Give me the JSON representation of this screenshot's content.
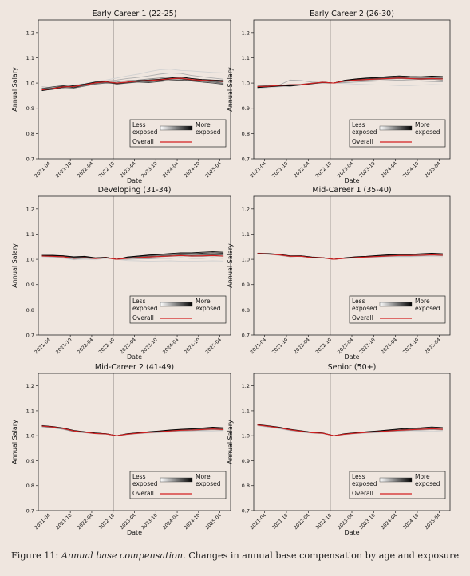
{
  "caption": {
    "label": "Figure 11:",
    "title": "Annual base compensation.",
    "text": "Changes in annual base compensation by age and exposure"
  },
  "colors": {
    "overall": "#d42020",
    "less_exposed": "#d0d0d0",
    "more_exposed": "#000000",
    "panel_background": "#efe6df"
  },
  "shared": {
    "xlabel": "Date",
    "ylabel": "Annual Salary",
    "yticks": [
      0.7,
      0.8,
      0.9,
      1.0,
      1.1,
      1.2
    ],
    "ylim": [
      0.7,
      1.25
    ],
    "xticks": [
      "2021-04",
      "2021-10",
      "2022-04",
      "2022-10",
      "2023-04",
      "2023-10",
      "2024-04",
      "2024-10",
      "2025-04"
    ],
    "xlim": [
      "2021-01",
      "2025-07"
    ],
    "reference_line": "2022-10",
    "legend": {
      "less": [
        "Less",
        "exposed"
      ],
      "more": [
        "More",
        "exposed"
      ],
      "overall": "Overall",
      "placement": "lower-right"
    }
  },
  "chart_data": [
    {
      "type": "line",
      "title": "Early Career 1 (22-25)",
      "x": [
        "2021-02",
        "2021-05",
        "2021-08",
        "2021-11",
        "2022-02",
        "2022-05",
        "2022-08",
        "2022-11",
        "2023-02",
        "2023-05",
        "2023-08",
        "2023-11",
        "2024-02",
        "2024-05",
        "2024-08",
        "2024-11",
        "2025-02",
        "2025-05"
      ],
      "series": [
        {
          "values": [
            0.975,
            0.98,
            0.985,
            0.992,
            0.998,
            1.006,
            1.012,
            1.02,
            1.028,
            1.035,
            1.045,
            1.052,
            1.055,
            1.05,
            1.048,
            1.045,
            1.042,
            1.04
          ]
        },
        {
          "values": [
            0.985,
            0.982,
            0.98,
            0.99,
            0.993,
            1.0,
            1.008,
            1.012,
            1.018,
            1.022,
            1.028,
            1.035,
            1.04,
            1.038,
            1.03,
            1.025,
            1.02,
            1.015
          ]
        },
        {
          "values": [
            0.98,
            0.978,
            0.983,
            0.986,
            0.99,
            0.997,
            1.002,
            1.004,
            1.01,
            1.012,
            1.016,
            1.02,
            1.024,
            1.022,
            1.018,
            1.012,
            1.006,
            1.0
          ]
        },
        {
          "values": [
            0.972,
            0.975,
            0.982,
            0.98,
            0.988,
            0.996,
            1.0,
            0.998,
            1.002,
            1.006,
            1.01,
            1.012,
            1.018,
            1.016,
            1.01,
            1.008,
            1.004,
            0.998
          ]
        },
        {
          "values": [
            0.978,
            0.985,
            0.99,
            0.985,
            0.995,
            1.002,
            1.005,
            0.996,
            1.0,
            1.004,
            1.002,
            1.006,
            1.01,
            1.012,
            1.008,
            1.004,
            1.0,
            0.995
          ]
        },
        {
          "values": [
            0.975,
            0.98,
            0.988,
            0.982,
            0.992,
            1.0,
            1.004,
            0.998,
            1.003,
            1.008,
            1.006,
            1.01,
            1.015,
            1.018,
            1.012,
            1.01,
            1.008,
            1.005
          ]
        },
        {
          "values": [
            0.97,
            0.976,
            0.984,
            0.99,
            0.996,
            1.004,
            1.006,
            1.0,
            1.004,
            1.01,
            1.012,
            1.015,
            1.02,
            1.024,
            1.018,
            1.014,
            1.012,
            1.01
          ]
        }
      ],
      "overall": [
        0.973,
        0.978,
        0.985,
        0.986,
        0.993,
        1.001,
        1.005,
        1.0,
        1.004,
        1.008,
        1.01,
        1.013,
        1.017,
        1.019,
        1.014,
        1.011,
        1.009,
        1.007
      ]
    },
    {
      "type": "line",
      "title": "Early Career 2 (26-30)",
      "x": [
        "2021-02",
        "2021-05",
        "2021-08",
        "2021-11",
        "2022-02",
        "2022-05",
        "2022-08",
        "2022-11",
        "2023-02",
        "2023-05",
        "2023-08",
        "2023-11",
        "2024-02",
        "2024-05",
        "2024-08",
        "2024-11",
        "2025-02",
        "2025-05"
      ],
      "series": [
        {
          "values": [
            0.978,
            0.982,
            0.985,
            0.988,
            0.992,
            0.998,
            1.002,
            1.0,
            0.998,
            0.996,
            0.994,
            0.992,
            0.992,
            0.99,
            0.99,
            0.992,
            0.994,
            0.993
          ]
        },
        {
          "values": [
            0.986,
            0.988,
            0.992,
            1.012,
            1.01,
            1.004,
            1.002,
            1.0,
            1.002,
            1.004,
            1.006,
            1.008,
            1.01,
            1.012,
            1.01,
            1.008,
            1.006,
            1.005
          ]
        },
        {
          "values": [
            0.985,
            0.986,
            0.99,
            0.994,
            0.995,
            1.0,
            1.002,
            1.0,
            1.006,
            1.01,
            1.012,
            1.014,
            1.016,
            1.018,
            1.016,
            1.014,
            1.015,
            1.012
          ]
        },
        {
          "values": [
            0.988,
            0.99,
            0.992,
            0.99,
            0.994,
            0.998,
            1.003,
            1.0,
            1.008,
            1.012,
            1.015,
            1.018,
            1.02,
            1.022,
            1.02,
            1.018,
            1.02,
            1.018
          ]
        },
        {
          "values": [
            0.984,
            0.986,
            0.99,
            0.988,
            0.992,
            0.997,
            1.002,
            1.0,
            1.01,
            1.014,
            1.018,
            1.02,
            1.022,
            1.025,
            1.024,
            1.022,
            1.024,
            1.022
          ]
        },
        {
          "values": [
            0.982,
            0.985,
            0.988,
            0.99,
            0.993,
            0.998,
            1.004,
            1.0,
            1.011,
            1.016,
            1.02,
            1.022,
            1.026,
            1.028,
            1.026,
            1.025,
            1.027,
            1.026
          ]
        }
      ],
      "overall": [
        0.986,
        0.987,
        0.991,
        0.993,
        0.994,
        0.999,
        1.003,
        1.0,
        1.008,
        1.012,
        1.014,
        1.016,
        1.018,
        1.02,
        1.018,
        1.016,
        1.018,
        1.016
      ]
    },
    {
      "type": "line",
      "title": "Developing (31-34)",
      "x": [
        "2021-02",
        "2021-05",
        "2021-08",
        "2021-11",
        "2022-02",
        "2022-05",
        "2022-08",
        "2022-11",
        "2023-02",
        "2023-05",
        "2023-08",
        "2023-11",
        "2024-02",
        "2024-05",
        "2024-08",
        "2024-11",
        "2025-02",
        "2025-05"
      ],
      "series": [
        {
          "values": [
            1.01,
            1.008,
            1.004,
            0.998,
            1.0,
            0.998,
            1.004,
            1.0,
            0.995,
            0.994,
            0.992,
            0.993,
            0.994,
            0.992,
            0.992,
            0.993,
            0.994,
            0.993
          ]
        },
        {
          "values": [
            1.012,
            1.01,
            1.006,
            1.0,
            1.004,
            1.002,
            1.006,
            1.0,
            1.0,
            1.002,
            1.002,
            1.004,
            1.004,
            1.006,
            1.004,
            1.004,
            1.006,
            1.004
          ]
        },
        {
          "values": [
            1.014,
            1.012,
            1.01,
            1.004,
            1.006,
            1.003,
            1.006,
            1.0,
            1.004,
            1.006,
            1.008,
            1.01,
            1.012,
            1.014,
            1.012,
            1.012,
            1.014,
            1.012
          ]
        },
        {
          "values": [
            1.015,
            1.014,
            1.012,
            1.006,
            1.008,
            1.004,
            1.007,
            1.0,
            1.006,
            1.009,
            1.012,
            1.014,
            1.016,
            1.018,
            1.016,
            1.017,
            1.018,
            1.017
          ]
        },
        {
          "values": [
            1.016,
            1.016,
            1.014,
            1.008,
            1.01,
            1.005,
            1.008,
            1.0,
            1.008,
            1.012,
            1.015,
            1.018,
            1.02,
            1.022,
            1.022,
            1.024,
            1.026,
            1.024
          ]
        },
        {
          "values": [
            1.014,
            1.015,
            1.014,
            1.01,
            1.012,
            1.006,
            1.008,
            1.0,
            1.009,
            1.013,
            1.017,
            1.02,
            1.023,
            1.026,
            1.026,
            1.028,
            1.03,
            1.028
          ]
        }
      ],
      "overall": [
        1.013,
        1.012,
        1.01,
        1.004,
        1.006,
        1.003,
        1.006,
        1.0,
        1.004,
        1.007,
        1.009,
        1.011,
        1.013,
        1.015,
        1.013,
        1.014,
        1.015,
        1.013
      ]
    },
    {
      "type": "line",
      "title": "Mid-Career 1 (35-40)",
      "x": [
        "2021-02",
        "2021-05",
        "2021-08",
        "2021-11",
        "2022-02",
        "2022-05",
        "2022-08",
        "2022-11",
        "2023-02",
        "2023-05",
        "2023-08",
        "2023-11",
        "2024-02",
        "2024-05",
        "2024-08",
        "2024-11",
        "2025-02",
        "2025-05"
      ],
      "series": [
        {
          "values": [
            1.026,
            1.022,
            1.018,
            1.014,
            1.01,
            1.008,
            1.006,
            1.0,
            1.004,
            1.006,
            1.007,
            1.008,
            1.01,
            1.01,
            1.01,
            1.011,
            1.012,
            1.01
          ]
        },
        {
          "values": [
            1.022,
            1.02,
            1.016,
            1.01,
            1.012,
            1.006,
            1.005,
            1.0,
            1.003,
            1.006,
            1.008,
            1.01,
            1.012,
            1.013,
            1.013,
            1.014,
            1.016,
            1.014
          ]
        },
        {
          "values": [
            1.024,
            1.021,
            1.018,
            1.012,
            1.012,
            1.007,
            1.006,
            1.0,
            1.004,
            1.008,
            1.01,
            1.012,
            1.014,
            1.016,
            1.016,
            1.017,
            1.019,
            1.017
          ]
        },
        {
          "values": [
            1.023,
            1.022,
            1.019,
            1.013,
            1.014,
            1.008,
            1.006,
            1.0,
            1.005,
            1.009,
            1.011,
            1.014,
            1.016,
            1.018,
            1.018,
            1.02,
            1.022,
            1.02
          ]
        },
        {
          "values": [
            1.024,
            1.023,
            1.02,
            1.014,
            1.014,
            1.009,
            1.007,
            1.0,
            1.006,
            1.01,
            1.012,
            1.015,
            1.018,
            1.02,
            1.02,
            1.022,
            1.024,
            1.022
          ]
        }
      ],
      "overall": [
        1.023,
        1.021,
        1.018,
        1.012,
        1.012,
        1.007,
        1.006,
        1.0,
        1.004,
        1.007,
        1.009,
        1.011,
        1.013,
        1.015,
        1.015,
        1.016,
        1.018,
        1.016
      ]
    },
    {
      "type": "line",
      "title": "Mid-Career 2 (41-49)",
      "x": [
        "2021-02",
        "2021-05",
        "2021-08",
        "2021-11",
        "2022-02",
        "2022-05",
        "2022-08",
        "2022-11",
        "2023-02",
        "2023-05",
        "2023-08",
        "2023-11",
        "2024-02",
        "2024-05",
        "2024-08",
        "2024-11",
        "2025-02",
        "2025-05"
      ],
      "series": [
        {
          "values": [
            1.042,
            1.036,
            1.03,
            1.02,
            1.016,
            1.01,
            1.008,
            1.0,
            1.004,
            1.008,
            1.01,
            1.012,
            1.014,
            1.016,
            1.016,
            1.018,
            1.018,
            1.016
          ]
        },
        {
          "values": [
            1.036,
            1.032,
            1.026,
            1.016,
            1.012,
            1.008,
            1.006,
            1.0,
            1.005,
            1.009,
            1.012,
            1.014,
            1.017,
            1.019,
            1.02,
            1.022,
            1.024,
            1.022
          ]
        },
        {
          "values": [
            1.038,
            1.034,
            1.028,
            1.018,
            1.014,
            1.009,
            1.007,
            1.0,
            1.006,
            1.01,
            1.013,
            1.016,
            1.019,
            1.022,
            1.023,
            1.025,
            1.027,
            1.025
          ]
        },
        {
          "values": [
            1.04,
            1.036,
            1.03,
            1.02,
            1.015,
            1.01,
            1.008,
            1.0,
            1.007,
            1.011,
            1.015,
            1.018,
            1.021,
            1.024,
            1.026,
            1.028,
            1.03,
            1.028
          ]
        },
        {
          "values": [
            1.041,
            1.037,
            1.031,
            1.021,
            1.016,
            1.011,
            1.008,
            1.0,
            1.008,
            1.012,
            1.016,
            1.019,
            1.023,
            1.026,
            1.028,
            1.031,
            1.034,
            1.032
          ]
        }
      ],
      "overall": [
        1.039,
        1.035,
        1.029,
        1.019,
        1.014,
        1.009,
        1.007,
        1.0,
        1.006,
        1.01,
        1.013,
        1.016,
        1.019,
        1.022,
        1.023,
        1.025,
        1.027,
        1.025
      ]
    },
    {
      "type": "line",
      "title": "Senior (50+)",
      "x": [
        "2021-02",
        "2021-05",
        "2021-08",
        "2021-11",
        "2022-02",
        "2022-05",
        "2022-08",
        "2022-11",
        "2023-02",
        "2023-05",
        "2023-08",
        "2023-11",
        "2024-02",
        "2024-05",
        "2024-08",
        "2024-11",
        "2025-02",
        "2025-05"
      ],
      "series": [
        {
          "values": [
            1.04,
            1.034,
            1.028,
            1.02,
            1.014,
            1.01,
            1.008,
            1.0,
            1.004,
            1.008,
            1.01,
            1.012,
            1.014,
            1.016,
            1.017,
            1.018,
            1.019,
            1.017
          ]
        },
        {
          "values": [
            1.042,
            1.036,
            1.03,
            1.022,
            1.016,
            1.011,
            1.009,
            1.0,
            1.005,
            1.009,
            1.012,
            1.014,
            1.017,
            1.019,
            1.021,
            1.023,
            1.025,
            1.023
          ]
        },
        {
          "values": [
            1.044,
            1.038,
            1.032,
            1.024,
            1.018,
            1.012,
            1.01,
            1.0,
            1.006,
            1.01,
            1.013,
            1.016,
            1.019,
            1.022,
            1.024,
            1.026,
            1.028,
            1.026
          ]
        },
        {
          "values": [
            1.043,
            1.039,
            1.033,
            1.025,
            1.019,
            1.013,
            1.01,
            1.0,
            1.007,
            1.011,
            1.015,
            1.018,
            1.021,
            1.024,
            1.027,
            1.029,
            1.032,
            1.03
          ]
        },
        {
          "values": [
            1.045,
            1.04,
            1.034,
            1.026,
            1.02,
            1.014,
            1.011,
            1.0,
            1.008,
            1.012,
            1.016,
            1.019,
            1.023,
            1.027,
            1.03,
            1.032,
            1.035,
            1.033
          ]
        }
      ],
      "overall": [
        1.043,
        1.038,
        1.032,
        1.024,
        1.018,
        1.012,
        1.01,
        1.0,
        1.006,
        1.01,
        1.013,
        1.016,
        1.019,
        1.022,
        1.024,
        1.026,
        1.028,
        1.026
      ]
    }
  ]
}
